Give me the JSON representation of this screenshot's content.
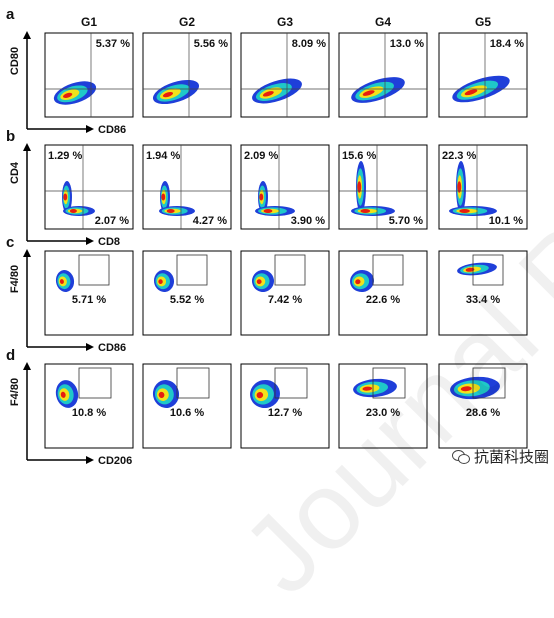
{
  "groups": [
    "G1",
    "G2",
    "G3",
    "G4",
    "G5"
  ],
  "rows": [
    {
      "letter": "a",
      "y_axis": "CD80",
      "x_axis": "CD86",
      "gate": "quadrant",
      "values": [
        {
          "upper": "5.37 %"
        },
        {
          "upper": "5.56 %"
        },
        {
          "upper": "8.09 %"
        },
        {
          "upper": "13.0 %"
        },
        {
          "upper": "18.4 %"
        }
      ]
    },
    {
      "letter": "b",
      "y_axis": "CD4",
      "x_axis": "CD8",
      "gate": "quadrant",
      "values": [
        {
          "upper": "1.29 %",
          "lower": "2.07 %"
        },
        {
          "upper": "1.94 %",
          "lower": "4.27 %"
        },
        {
          "upper": "2.09 %",
          "lower": "3.90 %"
        },
        {
          "upper": "15.6 %",
          "lower": "5.70 %"
        },
        {
          "upper": "22.3 %",
          "lower": "10.1 %"
        }
      ]
    },
    {
      "letter": "c",
      "y_axis": "F4/80",
      "x_axis": "CD86",
      "gate": "box",
      "values": [
        {
          "lower": "5.71 %"
        },
        {
          "lower": "5.52 %"
        },
        {
          "lower": "7.42 %"
        },
        {
          "lower": "22.6 %"
        },
        {
          "lower": "33.4 %"
        }
      ]
    },
    {
      "letter": "d",
      "y_axis": "F4/80",
      "x_axis": "CD206",
      "gate": "box",
      "values": [
        {
          "lower": "10.8 %"
        },
        {
          "lower": "10.6 %"
        },
        {
          "lower": "12.7 %"
        },
        {
          "lower": "23.0 %"
        },
        {
          "lower": "28.6 %"
        }
      ]
    }
  ],
  "watermark": "Journal Pre-proofs",
  "source_label": "抗菌科技圈",
  "colors": {
    "outer": "#1f3fd9",
    "mid": "#1fc8c8",
    "inner": "#f2e21a",
    "core": "#e61e10",
    "frame": "#000000"
  }
}
